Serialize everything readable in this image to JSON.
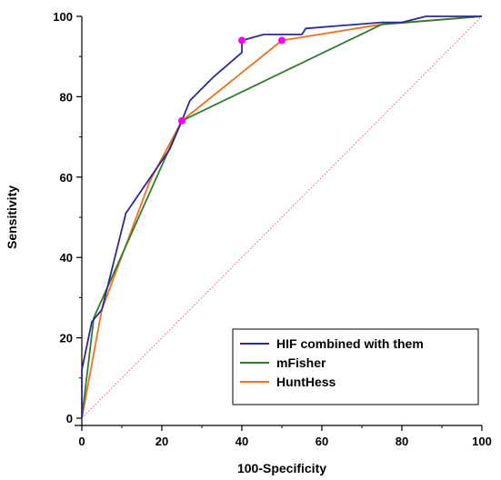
{
  "chart_data": {
    "type": "line",
    "xlabel": "100-Specificity",
    "ylabel": "Sensitivity",
    "xlim": [
      0,
      100
    ],
    "ylim": [
      0,
      100
    ],
    "x_ticks": [
      "0",
      "20",
      "40",
      "60",
      "80",
      "100"
    ],
    "y_ticks": [
      "0",
      "20",
      "40",
      "60",
      "80",
      "100"
    ],
    "grid": false,
    "legend_position": "bottom-right",
    "reference_line": {
      "x": [
        0,
        100
      ],
      "y": [
        0,
        100
      ],
      "color": "#e06060",
      "style": "dotted"
    },
    "series": [
      {
        "name": "HIF combined with them",
        "color": "#2b2b8f",
        "points": [
          [
            0,
            0
          ],
          [
            0,
            12
          ],
          [
            2.5,
            24
          ],
          [
            5,
            27
          ],
          [
            11,
            51
          ],
          [
            22,
            67
          ],
          [
            25,
            74
          ],
          [
            27,
            79
          ],
          [
            33,
            85
          ],
          [
            40,
            91
          ],
          [
            40,
            94
          ],
          [
            45.5,
            95.5
          ],
          [
            55,
            95.5
          ],
          [
            56,
            97
          ],
          [
            75,
            98.5
          ],
          [
            80,
            98.5
          ],
          [
            86,
            100
          ],
          [
            100,
            100
          ]
        ]
      },
      {
        "name": "mFisher",
        "color": "#2e7d2e",
        "points": [
          [
            0,
            0
          ],
          [
            3,
            25
          ],
          [
            25,
            74
          ],
          [
            75,
            98
          ],
          [
            100,
            100
          ]
        ]
      },
      {
        "name": "HuntHess",
        "color": "#f07020",
        "points": [
          [
            0,
            0
          ],
          [
            5,
            27
          ],
          [
            17,
            59
          ],
          [
            25,
            74
          ],
          [
            50,
            94
          ],
          [
            75,
            98
          ],
          [
            100,
            100
          ]
        ]
      }
    ],
    "markers": {
      "color": "#ff00ff",
      "points": [
        [
          25,
          74
        ],
        [
          40,
          94
        ],
        [
          50,
          94
        ]
      ]
    }
  }
}
